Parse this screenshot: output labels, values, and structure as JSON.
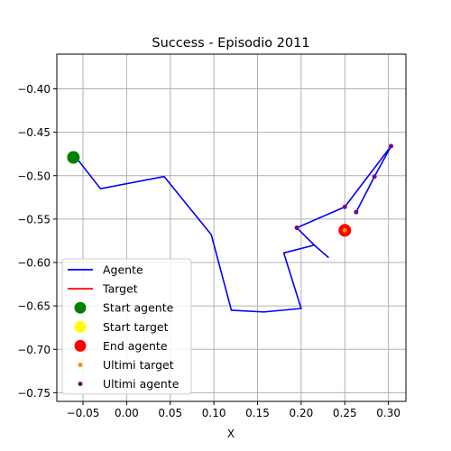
{
  "chart_data": {
    "type": "line",
    "title": "Success - Episodio 2011",
    "xlabel": "X",
    "ylabel": "Y",
    "xlim": [
      -0.08,
      0.32
    ],
    "ylim": [
      -0.76,
      -0.36
    ],
    "xticks": [
      -0.05,
      0.0,
      0.05,
      0.1,
      0.15,
      0.2,
      0.25,
      0.3
    ],
    "xtick_labels": [
      "−0.05",
      "0.00",
      "0.05",
      "0.10",
      "0.15",
      "0.20",
      "0.25",
      "0.30"
    ],
    "yticks": [
      -0.4,
      -0.45,
      -0.5,
      -0.55,
      -0.6,
      -0.65,
      -0.7,
      -0.75
    ],
    "ytick_labels": [
      "−0.40",
      "−0.45",
      "−0.50",
      "−0.55",
      "−0.60",
      "−0.65",
      "−0.70",
      "−0.75"
    ],
    "grid": true,
    "legend_position": "lower-left",
    "series": [
      {
        "name": "Agente",
        "kind": "line",
        "color": "#0000ff",
        "points": [
          [
            -0.058,
            -0.479
          ],
          [
            -0.03,
            -0.515
          ],
          [
            0.043,
            -0.501
          ],
          [
            0.097,
            -0.568
          ],
          [
            0.12,
            -0.655
          ],
          [
            0.157,
            -0.657
          ],
          [
            0.2,
            -0.653
          ],
          [
            0.18,
            -0.589
          ],
          [
            0.215,
            -0.58
          ],
          [
            0.231,
            -0.594
          ],
          [
            0.215,
            -0.58
          ],
          [
            0.195,
            -0.56
          ],
          [
            0.25,
            -0.536
          ],
          [
            0.303,
            -0.466
          ],
          [
            0.284,
            -0.501
          ],
          [
            0.263,
            -0.542
          ]
        ]
      },
      {
        "name": "Target",
        "kind": "line",
        "color": "#ff0000",
        "points": [
          [
            0.25,
            -0.563
          ],
          [
            0.25,
            -0.563
          ]
        ]
      },
      {
        "name": "Start agente",
        "kind": "marker",
        "color": "#008000",
        "points": [
          [
            -0.061,
            -0.479
          ]
        ]
      },
      {
        "name": "Start target",
        "kind": "marker",
        "color": "#ffff00",
        "points": [
          [
            0.25,
            -0.563
          ]
        ]
      },
      {
        "name": "End agente",
        "kind": "marker",
        "color": "#ff0000",
        "points": [
          [
            0.25,
            -0.563
          ]
        ]
      },
      {
        "name": "Ultimi target",
        "kind": "small-marker",
        "color": "#ff8c00",
        "points": [
          [
            0.25,
            -0.563
          ]
        ]
      },
      {
        "name": "Ultimi agente",
        "kind": "small-marker",
        "color": "#800080",
        "points": [
          [
            0.195,
            -0.56
          ],
          [
            0.25,
            -0.536
          ],
          [
            0.303,
            -0.466
          ],
          [
            0.284,
            -0.501
          ],
          [
            0.263,
            -0.542
          ]
        ]
      }
    ]
  }
}
